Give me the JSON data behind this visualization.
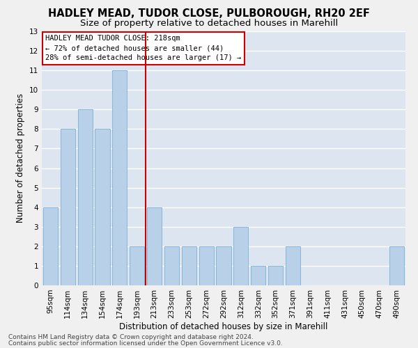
{
  "title": "HADLEY MEAD, TUDOR CLOSE, PULBOROUGH, RH20 2EF",
  "subtitle": "Size of property relative to detached houses in Marehill",
  "xlabel": "Distribution of detached houses by size in Marehill",
  "ylabel": "Number of detached properties",
  "categories": [
    "95sqm",
    "114sqm",
    "134sqm",
    "154sqm",
    "174sqm",
    "193sqm",
    "213sqm",
    "233sqm",
    "253sqm",
    "272sqm",
    "292sqm",
    "312sqm",
    "332sqm",
    "352sqm",
    "371sqm",
    "391sqm",
    "411sqm",
    "431sqm",
    "450sqm",
    "470sqm",
    "490sqm"
  ],
  "values": [
    4,
    8,
    9,
    8,
    11,
    2,
    4,
    2,
    2,
    2,
    2,
    3,
    1,
    1,
    2,
    0,
    0,
    0,
    0,
    0,
    2
  ],
  "bar_color": "#b8d0e8",
  "bar_edge_color": "#7aafd4",
  "vline_color": "#cc0000",
  "annotation_title": "HADLEY MEAD TUDOR CLOSE: 218sqm",
  "annotation_line1": "← 72% of detached houses are smaller (44)",
  "annotation_line2": "28% of semi-detached houses are larger (17) →",
  "annotation_box_color": "#cc0000",
  "ylim": [
    0,
    13
  ],
  "yticks": [
    0,
    1,
    2,
    3,
    4,
    5,
    6,
    7,
    8,
    9,
    10,
    11,
    12,
    13
  ],
  "footnote1": "Contains HM Land Registry data © Crown copyright and database right 2024.",
  "footnote2": "Contains public sector information licensed under the Open Government Licence v3.0.",
  "bg_color": "#dde6f0",
  "grid_color": "#ffffff",
  "fig_bg_color": "#f0f0f0",
  "title_fontsize": 10.5,
  "subtitle_fontsize": 9.5,
  "axis_label_fontsize": 8.5,
  "tick_fontsize": 7.5,
  "annotation_fontsize": 7.5,
  "footnote_fontsize": 6.5
}
